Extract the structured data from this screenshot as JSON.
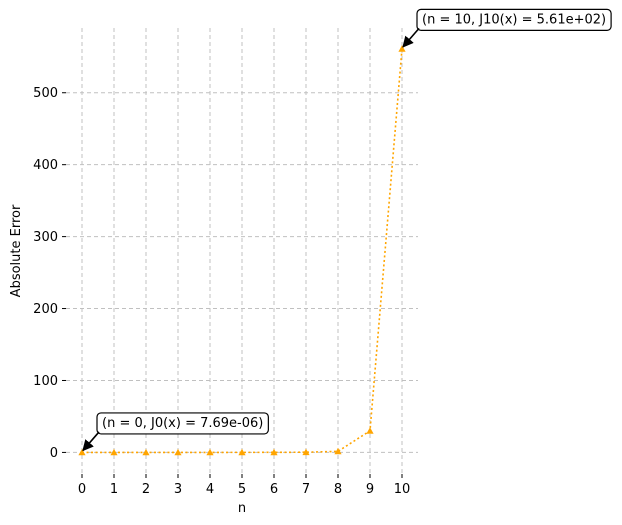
{
  "chart_data": {
    "type": "line",
    "title": "",
    "xlabel": "n",
    "ylabel": "Absolute Error",
    "x": [
      0,
      1,
      2,
      3,
      4,
      5,
      6,
      7,
      8,
      9,
      10
    ],
    "series": [
      {
        "values": [
          7.7e-06,
          0.0001,
          0.001,
          0.005,
          0.02,
          0.05,
          0.1,
          0.3,
          1.5,
          30,
          561
        ],
        "color": "#ffa500",
        "line_style": "dotted",
        "marker": "triangle-up"
      }
    ],
    "xlim": [
      -0.5,
      10.5
    ],
    "ylim": [
      -30,
      590
    ],
    "x_ticks": [
      0,
      1,
      2,
      3,
      4,
      5,
      6,
      7,
      8,
      9,
      10
    ],
    "y_ticks": [
      0,
      100,
      200,
      300,
      400,
      500
    ],
    "grid": true,
    "annotations": [
      {
        "text": "(n = 0, J0(x) = 7.69e-06)",
        "x": 0,
        "y": 7.7e-06
      },
      {
        "text": "(n = 10, J10(x) = 5.61e+02)",
        "x": 10,
        "y": 561
      }
    ]
  }
}
